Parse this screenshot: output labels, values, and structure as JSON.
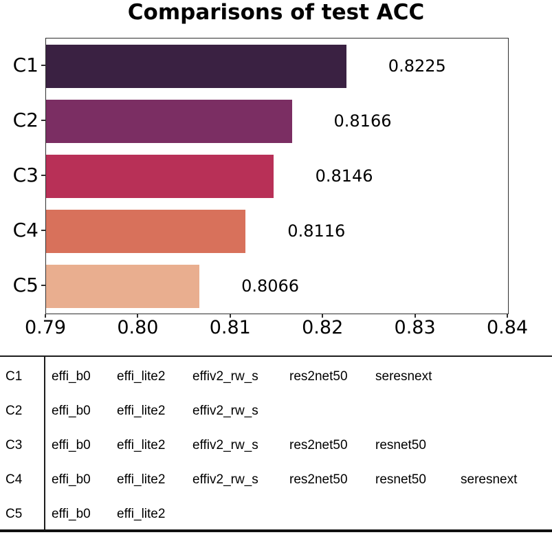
{
  "figure": {
    "title": "Comparisons of test ACC"
  },
  "chart_data": {
    "type": "bar",
    "orientation": "horizontal",
    "title": "Comparisons of test ACC",
    "categories": [
      "C1",
      "C2",
      "C3",
      "C4",
      "C5"
    ],
    "values": [
      0.8225,
      0.8166,
      0.8146,
      0.8116,
      0.8066
    ],
    "value_labels": [
      "0.8225",
      "0.8166",
      "0.8146",
      "0.8116",
      "0.8066"
    ],
    "bar_colors": [
      "#3A2142",
      "#7B2E63",
      "#B83057",
      "#D8715B",
      "#E9AE8F"
    ],
    "xlim": [
      0.79,
      0.84
    ],
    "x_tick_labels": [
      "0.79",
      "0.80",
      "0.81",
      "0.82",
      "0.83",
      "0.84"
    ],
    "grid": false,
    "legend": "none",
    "frame_color": "#2e2e2e"
  },
  "combos_table": {
    "rows": [
      {
        "label": "C1",
        "models": [
          "effi_b0",
          "effi_lite2",
          "effiv2_rw_s",
          "res2net50",
          "seresnext"
        ]
      },
      {
        "label": "C2",
        "models": [
          "effi_b0",
          "effi_lite2",
          "effiv2_rw_s"
        ]
      },
      {
        "label": "C3",
        "models": [
          "effi_b0",
          "effi_lite2",
          "effiv2_rw_s",
          "res2net50",
          "resnet50"
        ]
      },
      {
        "label": "C4",
        "models": [
          "effi_b0",
          "effi_lite2",
          "effiv2_rw_s",
          "res2net50",
          "resnet50",
          "seresnext"
        ]
      },
      {
        "label": "C5",
        "models": [
          "effi_b0",
          "effi_lite2"
        ]
      }
    ]
  }
}
